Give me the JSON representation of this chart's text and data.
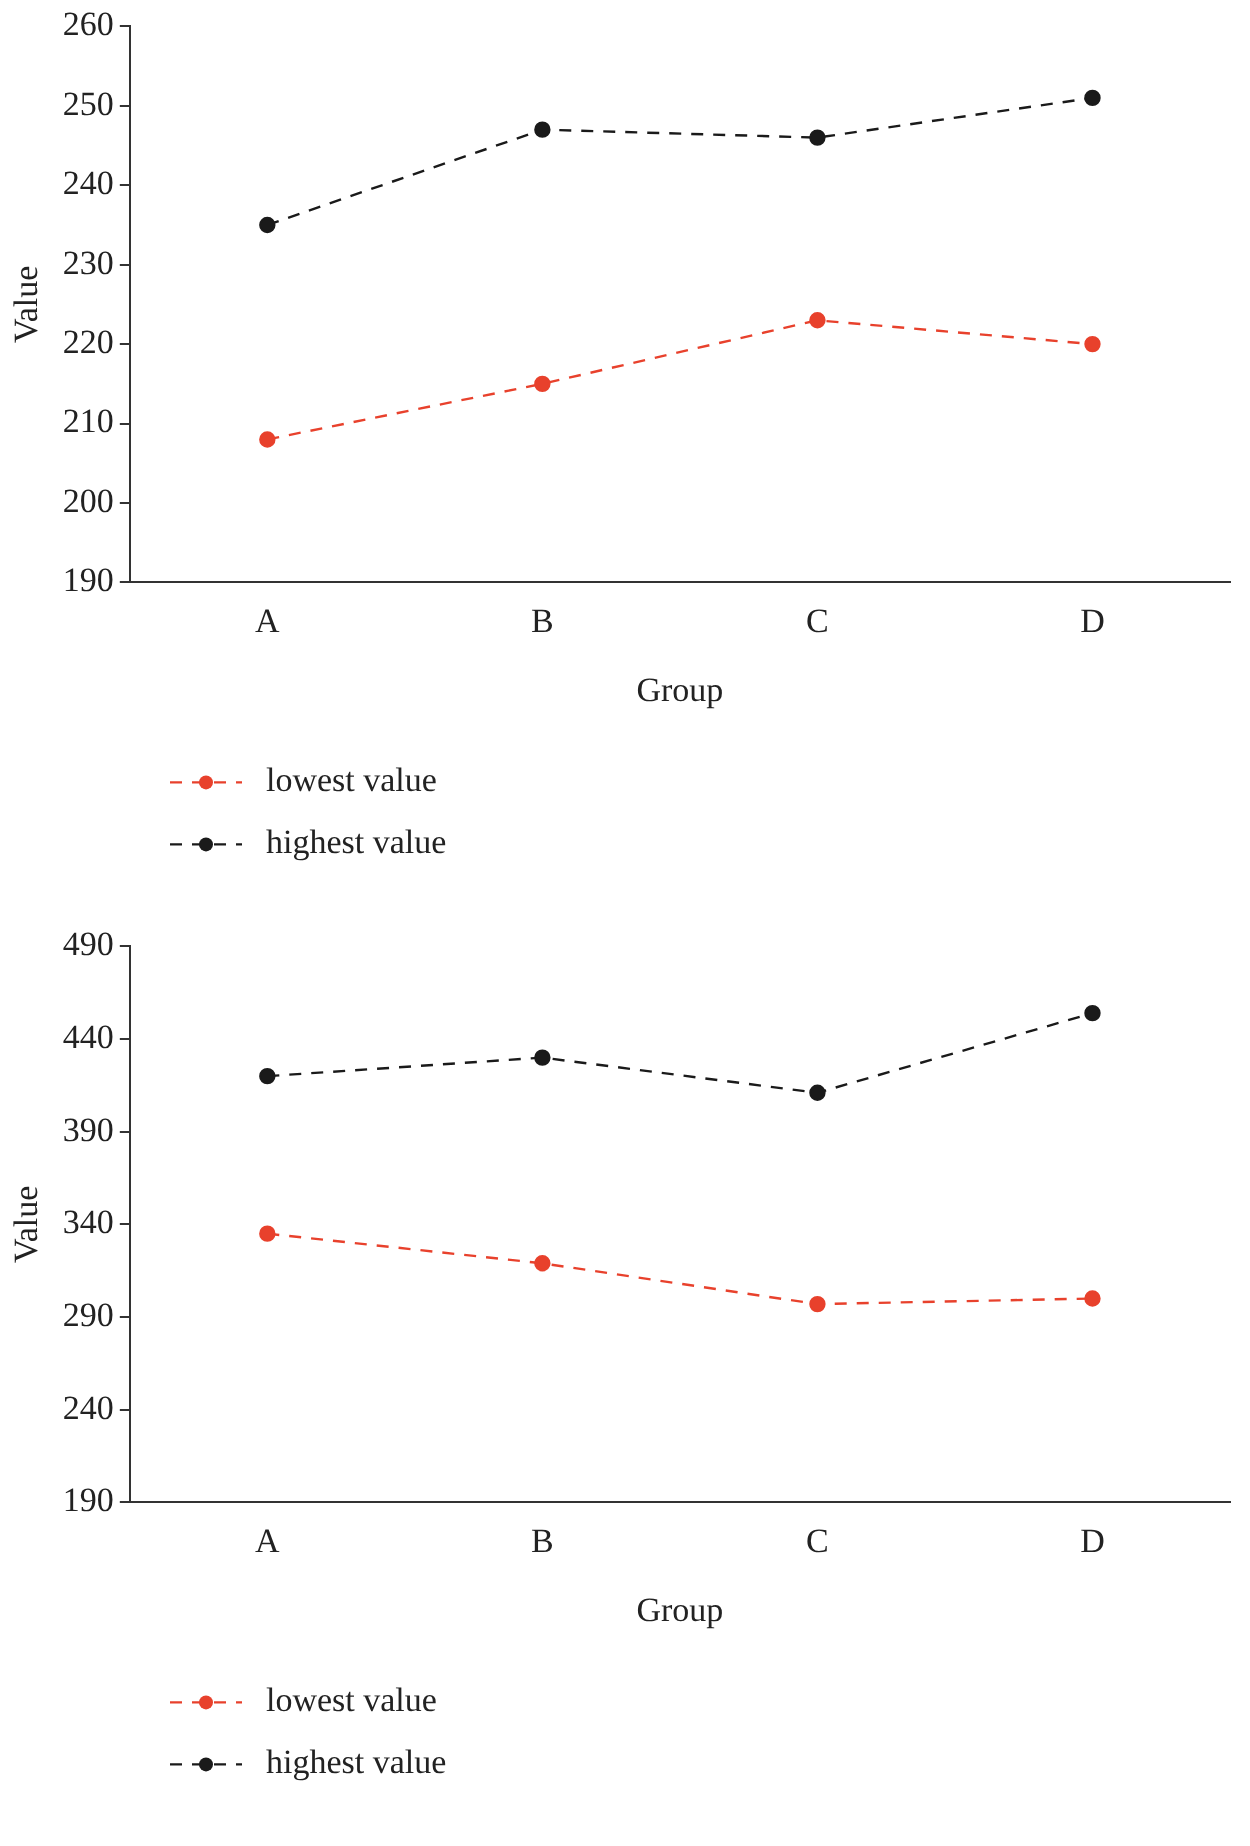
{
  "chart_data": [
    {
      "type": "line",
      "xlabel": "Group",
      "ylabel": "Value",
      "categories": [
        "A",
        "B",
        "C",
        "D"
      ],
      "ylim": [
        190,
        260
      ],
      "yticks": [
        190,
        200,
        210,
        220,
        230,
        240,
        250,
        260
      ],
      "legend": "bottom left",
      "marker": "circle",
      "line_style": "dashed",
      "series": [
        {
          "name": "lowest value",
          "color": "#e8412c",
          "values": [
            208,
            215,
            223,
            220
          ]
        },
        {
          "name": "highest value",
          "color": "#1a1a1a",
          "values": [
            235,
            247,
            246,
            251
          ]
        }
      ]
    },
    {
      "type": "line",
      "xlabel": "Group",
      "ylabel": "Value",
      "categories": [
        "A",
        "B",
        "C",
        "D"
      ],
      "ylim": [
        190,
        490
      ],
      "yticks": [
        190,
        240,
        290,
        340,
        390,
        440,
        490
      ],
      "legend": "bottom left",
      "marker": "circle",
      "line_style": "dashed",
      "series": [
        {
          "name": "lowest value",
          "color": "#e8412c",
          "values": [
            335,
            319,
            297,
            300
          ]
        },
        {
          "name": "highest value",
          "color": "#1a1a1a",
          "values": [
            420,
            430,
            411,
            454
          ]
        }
      ]
    }
  ]
}
